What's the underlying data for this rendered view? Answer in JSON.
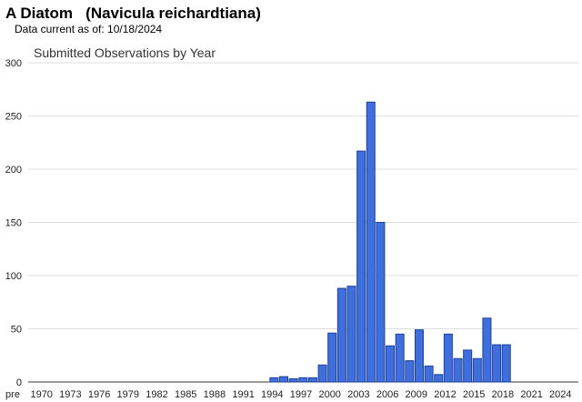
{
  "header": {
    "title": "A Diatom   (Navicula reichardtiana)",
    "data_current": "Data current as of: 10/18/2024"
  },
  "chart_data": {
    "type": "bar",
    "title": "Submitted Observations by Year",
    "xlabel": "",
    "ylabel": "",
    "ylim": [
      0,
      300
    ],
    "yticks": [
      0,
      50,
      100,
      150,
      200,
      250,
      300
    ],
    "grid": true,
    "bar_color": "#3f6fdc",
    "bar_stroke": "#1d3f99",
    "categories": [
      "pre 1970",
      "1970",
      "1971",
      "1972",
      "1973",
      "1974",
      "1975",
      "1976",
      "1977",
      "1978",
      "1979",
      "1980",
      "1981",
      "1982",
      "1983",
      "1984",
      "1985",
      "1986",
      "1987",
      "1988",
      "1989",
      "1990",
      "1991",
      "1992",
      "1993",
      "1994",
      "1995",
      "1996",
      "1997",
      "1998",
      "1999",
      "2000",
      "2001",
      "2002",
      "2003",
      "2004",
      "2005",
      "2006",
      "2007",
      "2008",
      "2009",
      "2010",
      "2011",
      "2012",
      "2013",
      "2014",
      "2015",
      "2016",
      "2017",
      "2018",
      "2019",
      "2020",
      "2021",
      "2022",
      "2023",
      "2024"
    ],
    "values": [
      0,
      0,
      0,
      0,
      0,
      0,
      0,
      0,
      0,
      0,
      0,
      0,
      0,
      0,
      0,
      0,
      0,
      0,
      0,
      0,
      0,
      0,
      0,
      0,
      0,
      4,
      5,
      3,
      4,
      4,
      16,
      46,
      88,
      90,
      217,
      263,
      150,
      34,
      45,
      20,
      49,
      15,
      7,
      45,
      22,
      30,
      22,
      60,
      35,
      35,
      0,
      0,
      0,
      0,
      0,
      0
    ],
    "tick_labels": [
      "pre",
      "1970",
      "1973",
      "1976",
      "1979",
      "1982",
      "1985",
      "1988",
      "1991",
      "1994",
      "1997",
      "2000",
      "2003",
      "2006",
      "2009",
      "2012",
      "2015",
      "2018",
      "2021",
      "2024"
    ]
  }
}
